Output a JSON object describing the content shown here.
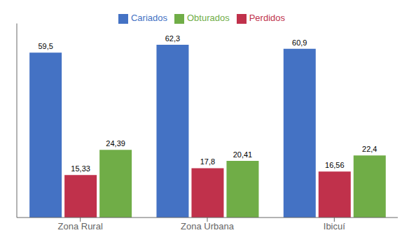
{
  "chart_data": {
    "type": "bar",
    "categories": [
      "Zona Rural",
      "Zona Urbana",
      "Ibicuí"
    ],
    "series": [
      {
        "name": "Cariados",
        "values": [
          59.5,
          62.3,
          60.9
        ],
        "value_labels": [
          "59,5",
          "62,3",
          "60,9"
        ],
        "color": "#4472C4"
      },
      {
        "name": "Perdidos",
        "values": [
          15.33,
          17.8,
          16.56
        ],
        "value_labels": [
          "15,33",
          "17,8",
          "16,56"
        ],
        "color": "#C0314B"
      },
      {
        "name": "Obturados",
        "values": [
          24.39,
          20.41,
          22.4
        ],
        "value_labels": [
          "24,39",
          "20,41",
          "22,4"
        ],
        "color": "#70AD47"
      }
    ],
    "ylim": [
      0,
      70
    ],
    "data_labels": true,
    "tick_labels": "x",
    "legend": "top",
    "grid": false
  }
}
